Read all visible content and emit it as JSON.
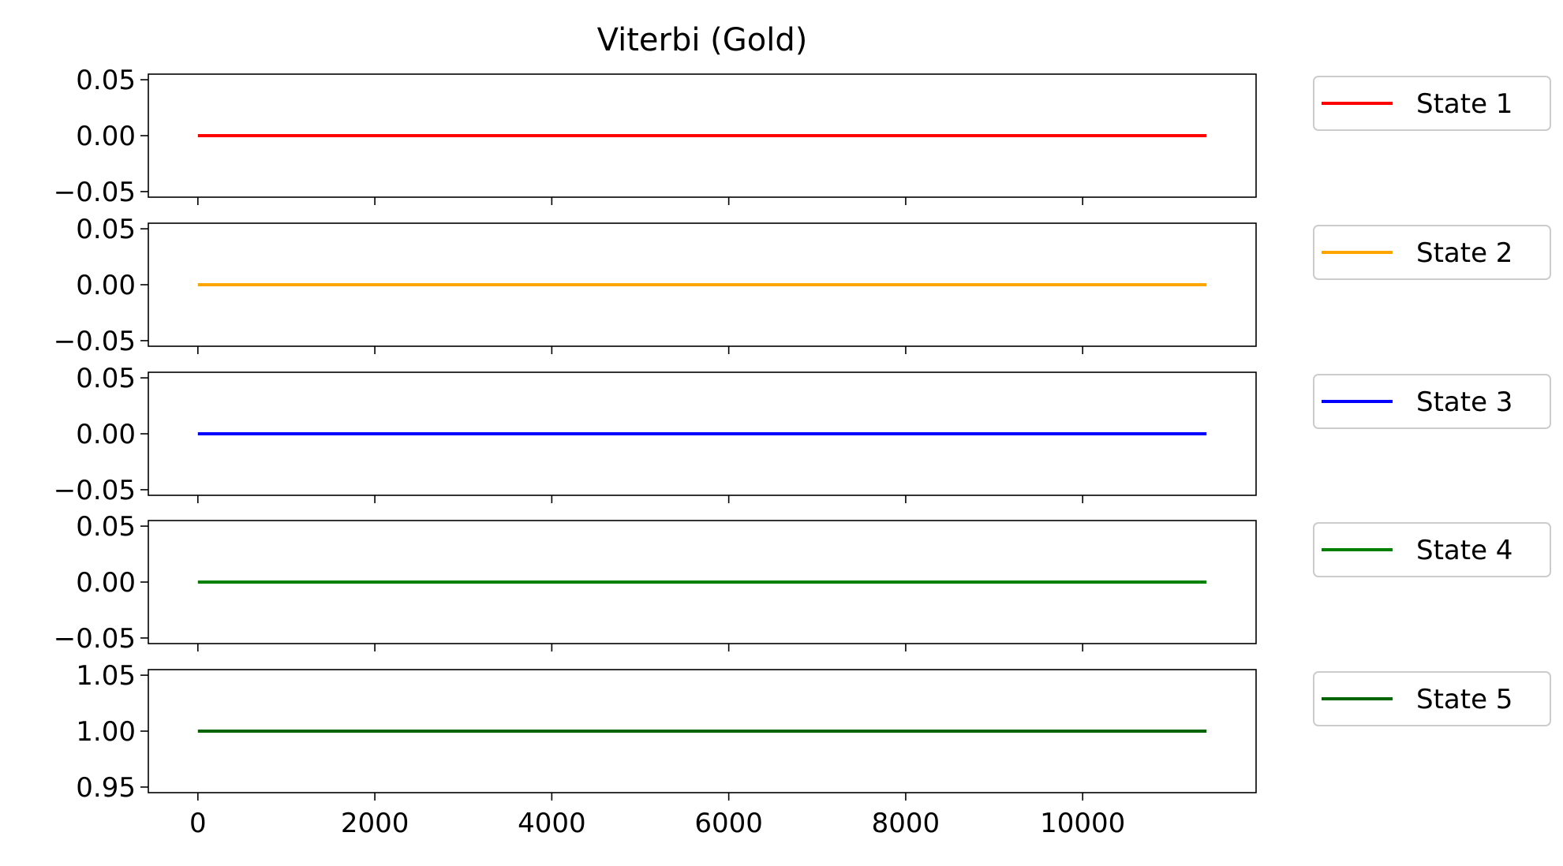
{
  "chart_data": {
    "type": "line",
    "title": "Viterbi (Gold)",
    "xlabel": "",
    "x_range": [
      0,
      11400
    ],
    "xlim": [
      -560,
      11960
    ],
    "x_ticks": [
      0,
      2000,
      4000,
      6000,
      8000,
      10000
    ],
    "x_tick_labels": [
      "0",
      "2000",
      "4000",
      "6000",
      "8000",
      "10000"
    ],
    "grid": false,
    "legend_position": "right of each panel",
    "subplots": [
      {
        "ylim": [
          -0.055,
          0.055
        ],
        "y_ticks": [
          0.05,
          0.0,
          -0.05
        ],
        "y_tick_labels": [
          "0.05",
          "0.00",
          "−0.05"
        ],
        "series": [
          {
            "name": "State 1",
            "color": "#ff0000",
            "x": [
              0,
              11400
            ],
            "y": [
              0,
              0
            ]
          }
        ]
      },
      {
        "ylim": [
          -0.055,
          0.055
        ],
        "y_ticks": [
          0.05,
          0.0,
          -0.05
        ],
        "y_tick_labels": [
          "0.05",
          "0.00",
          "−0.05"
        ],
        "series": [
          {
            "name": "State 2",
            "color": "#ffa500",
            "x": [
              0,
              11400
            ],
            "y": [
              0,
              0
            ]
          }
        ]
      },
      {
        "ylim": [
          -0.055,
          0.055
        ],
        "y_ticks": [
          0.05,
          0.0,
          -0.05
        ],
        "y_tick_labels": [
          "0.05",
          "0.00",
          "−0.05"
        ],
        "series": [
          {
            "name": "State 3",
            "color": "#0000ff",
            "x": [
              0,
              11400
            ],
            "y": [
              0,
              0
            ]
          }
        ]
      },
      {
        "ylim": [
          -0.055,
          0.055
        ],
        "y_ticks": [
          0.05,
          0.0,
          -0.05
        ],
        "y_tick_labels": [
          "0.05",
          "0.00",
          "−0.05"
        ],
        "series": [
          {
            "name": "State 4",
            "color": "#008000",
            "x": [
              0,
              11400
            ],
            "y": [
              0,
              0
            ]
          }
        ]
      },
      {
        "ylim": [
          0.945,
          1.055
        ],
        "y_ticks": [
          1.05,
          1.0,
          0.95
        ],
        "y_tick_labels": [
          "1.05",
          "1.00",
          "0.95"
        ],
        "series": [
          {
            "name": "State 5",
            "color": "#006400",
            "x": [
              0,
              11400
            ],
            "y": [
              1,
              1
            ]
          }
        ]
      }
    ]
  }
}
